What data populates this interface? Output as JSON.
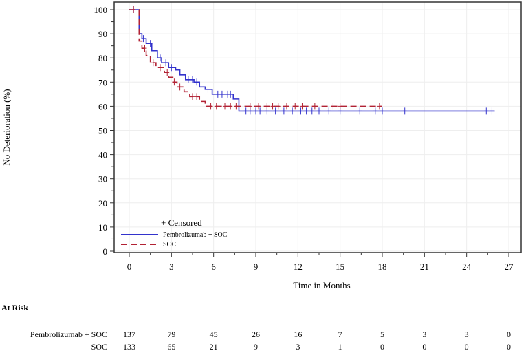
{
  "chart_data": {
    "type": "line",
    "subtype": "kaplan-meier step",
    "xlabel": "Time in Months",
    "ylabel": "No Deterioration (%)",
    "xlim": [
      0,
      27
    ],
    "ylim": [
      0,
      100
    ],
    "xticks": [
      0,
      3,
      6,
      9,
      12,
      15,
      18,
      21,
      24,
      27
    ],
    "yticks": [
      0,
      10,
      20,
      30,
      40,
      50,
      60,
      70,
      80,
      90,
      100
    ],
    "grid": true,
    "legend": {
      "placement": "bottom-left",
      "censored_label": "+ Censored",
      "entries": [
        "Pembrolizumab + SOC",
        "SOC"
      ]
    },
    "series": [
      {
        "name": "Pembrolizumab + SOC",
        "color": "#3333cc",
        "style": "solid",
        "steps": [
          [
            0,
            100
          ],
          [
            0.7,
            90
          ],
          [
            0.9,
            88
          ],
          [
            1.2,
            86
          ],
          [
            1.6,
            83
          ],
          [
            2.0,
            80
          ],
          [
            2.3,
            78
          ],
          [
            2.8,
            76
          ],
          [
            3.3,
            75
          ],
          [
            3.6,
            73
          ],
          [
            4.0,
            71
          ],
          [
            4.6,
            70
          ],
          [
            5.0,
            68
          ],
          [
            5.4,
            67
          ],
          [
            5.9,
            65
          ],
          [
            7.4,
            63
          ],
          [
            7.8,
            58
          ],
          [
            26.0,
            58
          ]
        ],
        "censored": [
          0.3,
          1.0,
          1.5,
          2.2,
          2.6,
          3.0,
          3.4,
          4.2,
          4.5,
          4.8,
          5.6,
          6.3,
          6.6,
          7.0,
          7.2,
          8.3,
          8.6,
          9.0,
          9.3,
          9.8,
          10.4,
          11.0,
          11.6,
          12.2,
          12.6,
          13.0,
          13.5,
          14.2,
          15.0,
          16.4,
          17.5,
          18.0,
          19.6,
          25.4,
          25.8
        ]
      },
      {
        "name": "SOC",
        "color": "#b22234",
        "style": "dashed",
        "steps": [
          [
            0,
            100
          ],
          [
            0.7,
            87
          ],
          [
            0.9,
            84
          ],
          [
            1.2,
            81
          ],
          [
            1.5,
            78
          ],
          [
            1.9,
            76
          ],
          [
            2.5,
            74
          ],
          [
            2.8,
            72
          ],
          [
            3.1,
            70
          ],
          [
            3.4,
            68
          ],
          [
            3.9,
            66
          ],
          [
            4.3,
            64
          ],
          [
            5.0,
            62
          ],
          [
            5.4,
            60
          ],
          [
            18.0,
            60
          ]
        ],
        "censored": [
          0.3,
          1.1,
          1.7,
          2.2,
          2.7,
          3.2,
          3.6,
          4.5,
          4.8,
          5.6,
          5.8,
          6.2,
          6.8,
          7.2,
          7.6,
          8.6,
          9.2,
          9.8,
          10.2,
          10.6,
          11.2,
          11.8,
          12.3,
          13.2,
          14.5,
          15.0,
          17.8
        ]
      }
    ],
    "at_risk": {
      "title": "At Risk",
      "times": [
        0,
        3,
        6,
        9,
        12,
        15,
        18,
        21,
        24,
        27
      ],
      "rows": [
        {
          "label": "Pembrolizumab + SOC",
          "values": [
            "137",
            "79",
            "45",
            "26",
            "16",
            "7",
            "5",
            "3",
            "3",
            "0"
          ]
        },
        {
          "label": "SOC",
          "values": [
            "133",
            "65",
            "21",
            "9",
            "3",
            "1",
            "0",
            "0",
            "0",
            "0"
          ]
        }
      ]
    }
  }
}
